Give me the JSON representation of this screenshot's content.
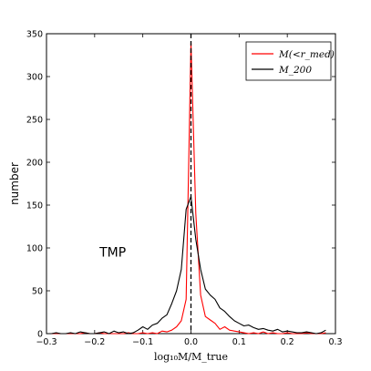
{
  "chart_data": {
    "type": "line",
    "xlabel": "log₁₀M/M_true",
    "ylabel": "number",
    "xlim": [
      -0.3,
      0.3
    ],
    "ylim": [
      0,
      350
    ],
    "xticks": [
      "−0.3",
      "−0.2",
      "−0.1",
      "0.0",
      "0.1",
      "0.2",
      "0.3"
    ],
    "yticks": [
      "0",
      "50",
      "100",
      "150",
      "200",
      "250",
      "300",
      "350"
    ],
    "grid": false,
    "legend_position": "top-right",
    "annotation": "TMP",
    "vline": {
      "x": 0.0,
      "style": "dashed",
      "color": "#000000"
    },
    "series": [
      {
        "name": "M(<r_med)",
        "color": "#ff0000",
        "x": [
          -0.29,
          -0.28,
          -0.27,
          -0.26,
          -0.25,
          -0.24,
          -0.23,
          -0.22,
          -0.21,
          -0.2,
          -0.19,
          -0.18,
          -0.17,
          -0.16,
          -0.15,
          -0.14,
          -0.13,
          -0.12,
          -0.11,
          -0.1,
          -0.09,
          -0.08,
          -0.07,
          -0.06,
          -0.05,
          -0.04,
          -0.03,
          -0.02,
          -0.01,
          0.0,
          0.01,
          0.02,
          0.03,
          0.04,
          0.05,
          0.06,
          0.07,
          0.08,
          0.09,
          0.1,
          0.11,
          0.12,
          0.13,
          0.14,
          0.15,
          0.16,
          0.17,
          0.18,
          0.19,
          0.2,
          0.21,
          0.22,
          0.23,
          0.24,
          0.25,
          0.26,
          0.27,
          0.28
        ],
        "values": [
          0,
          0,
          0,
          0,
          0,
          0,
          0,
          1,
          0,
          0,
          1,
          0,
          0,
          0,
          0,
          0,
          1,
          0,
          0,
          1,
          0,
          1,
          0,
          3,
          2,
          4,
          8,
          15,
          40,
          340,
          140,
          45,
          20,
          16,
          12,
          5,
          8,
          4,
          3,
          2,
          1,
          0,
          1,
          0,
          2,
          0,
          1,
          0,
          0,
          1,
          0,
          0,
          0,
          1,
          0,
          0,
          0,
          1
        ]
      },
      {
        "name": "M_200",
        "color": "#000000",
        "x": [
          -0.29,
          -0.28,
          -0.27,
          -0.26,
          -0.25,
          -0.24,
          -0.23,
          -0.22,
          -0.21,
          -0.2,
          -0.19,
          -0.18,
          -0.17,
          -0.16,
          -0.15,
          -0.14,
          -0.13,
          -0.12,
          -0.11,
          -0.1,
          -0.09,
          -0.08,
          -0.07,
          -0.06,
          -0.05,
          -0.04,
          -0.03,
          -0.02,
          -0.01,
          0.0,
          0.01,
          0.02,
          0.03,
          0.04,
          0.05,
          0.06,
          0.07,
          0.08,
          0.09,
          0.1,
          0.11,
          0.12,
          0.13,
          0.14,
          0.15,
          0.16,
          0.17,
          0.18,
          0.19,
          0.2,
          0.21,
          0.22,
          0.23,
          0.24,
          0.25,
          0.26,
          0.27,
          0.28
        ],
        "values": [
          0,
          1,
          0,
          0,
          1,
          0,
          2,
          1,
          0,
          0,
          1,
          2,
          0,
          3,
          1,
          2,
          0,
          1,
          4,
          8,
          5,
          10,
          12,
          18,
          22,
          35,
          50,
          75,
          145,
          160,
          110,
          75,
          52,
          45,
          40,
          30,
          26,
          20,
          15,
          12,
          9,
          10,
          7,
          5,
          6,
          4,
          3,
          5,
          2,
          3,
          2,
          1,
          1,
          2,
          1,
          0,
          1,
          4
        ]
      }
    ]
  }
}
